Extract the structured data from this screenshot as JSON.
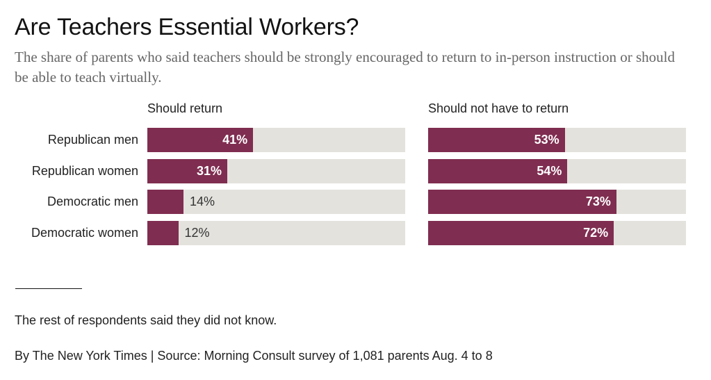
{
  "title": "Are Teachers Essential Workers?",
  "subtitle": "The share of parents who said teachers should be strongly encouraged to return to in-person instruction or should be able to teach virtually.",
  "note": "The rest of respondents said they did not know.",
  "source": "By The New York Times | Source: Morning Consult survey of 1,081 parents Aug. 4 to 8",
  "colors": {
    "bar": "#7f2d50",
    "track": "#e3e2dd"
  },
  "chart_data": {
    "type": "bar",
    "orientation": "horizontal",
    "categories": [
      "Republican men",
      "Republican women",
      "Democratic men",
      "Democratic women"
    ],
    "xlim": [
      0,
      100
    ],
    "series": [
      {
        "name": "Should return",
        "values": [
          41,
          31,
          14,
          12
        ],
        "labels": [
          "41%",
          "31%",
          "14%",
          "12%"
        ]
      },
      {
        "name": "Should not have to return",
        "values": [
          53,
          54,
          73,
          72
        ],
        "labels": [
          "53%",
          "54%",
          "73%",
          "72%"
        ]
      }
    ]
  }
}
